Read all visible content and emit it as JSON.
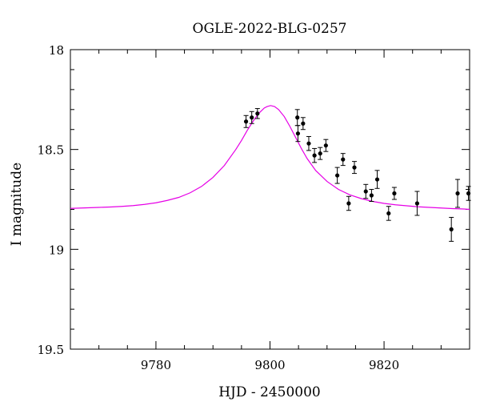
{
  "chart_data": {
    "type": "scatter",
    "title": "OGLE-2022-BLG-0257",
    "xlabel": "HJD - 2450000",
    "ylabel": "I magnitude",
    "xlim": [
      9765,
      9835
    ],
    "ylim": [
      19.5,
      18.0
    ],
    "y_inverted": true,
    "x_ticks": [
      9780,
      9800,
      9820
    ],
    "y_ticks": [
      18,
      18.5,
      19,
      19.5
    ],
    "y_tick_labels": [
      "18",
      "18.5",
      "19",
      "19.5"
    ],
    "model_color": "#e600e6",
    "point_color": "#000000",
    "series": [
      {
        "kind": "points",
        "x": [
          9795.8,
          9796.8,
          9797.8,
          9804.8,
          9804.9,
          9805.8,
          9806.8,
          9807.8,
          9808.8,
          9809.8,
          9811.8,
          9812.8,
          9813.8,
          9814.8,
          9816.8,
          9817.8,
          9818.8,
          9820.8,
          9821.8,
          9825.8,
          9831.8,
          9832.9,
          9834.8
        ],
        "y": [
          18.36,
          18.34,
          18.32,
          18.34,
          18.42,
          18.37,
          18.47,
          18.53,
          18.52,
          18.48,
          18.63,
          18.55,
          18.77,
          18.59,
          18.71,
          18.73,
          18.65,
          18.82,
          18.72,
          18.77,
          18.9,
          18.72,
          18.72
        ],
        "err": [
          0.03,
          0.03,
          0.025,
          0.04,
          0.04,
          0.03,
          0.035,
          0.035,
          0.03,
          0.03,
          0.04,
          0.03,
          0.035,
          0.03,
          0.035,
          0.03,
          0.045,
          0.035,
          0.03,
          0.06,
          0.06,
          0.07,
          0.035
        ]
      },
      {
        "kind": "model",
        "t0": 9800.1,
        "peak_mag": 18.28,
        "baseline_mag": 18.8
      }
    ]
  }
}
